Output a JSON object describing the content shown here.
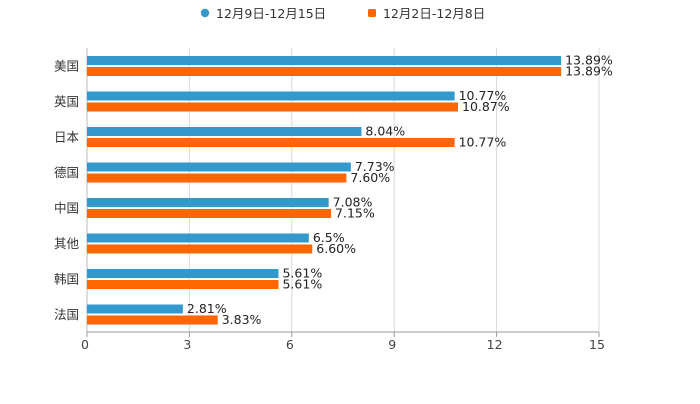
{
  "chart_data": {
    "type": "bar",
    "orientation": "horizontal",
    "title": "",
    "xlabel": "",
    "ylabel": "",
    "xlim": [
      0,
      15
    ],
    "x_ticks": [
      0,
      3,
      6,
      9,
      12,
      15
    ],
    "x_tick_labels": [
      "0",
      "3",
      "6",
      "9",
      "12",
      "15"
    ],
    "grid": true,
    "legend_position": "top-center",
    "categories": [
      "美国",
      "英国",
      "日本",
      "德国",
      "中国",
      "其他",
      "韩国",
      "法国"
    ],
    "series": [
      {
        "name": "12月9日-12月15日",
        "color": "#3399cc",
        "values": [
          13.89,
          10.77,
          8.04,
          7.73,
          7.08,
          6.5,
          5.61,
          2.81
        ],
        "labels": [
          "13.89%",
          "10.77%",
          "8.04%",
          "7.73%",
          "7.08%",
          "6.5%",
          "5.61%",
          "2.81%"
        ]
      },
      {
        "name": "12月2日-12月8日",
        "color": "#ff6600",
        "values": [
          13.89,
          10.87,
          10.77,
          7.6,
          7.15,
          6.6,
          5.61,
          3.83
        ],
        "labels": [
          "13.89%",
          "10.87%",
          "10.77%",
          "7.60%",
          "7.15%",
          "6.60%",
          "5.61%",
          "3.83%"
        ]
      }
    ]
  }
}
